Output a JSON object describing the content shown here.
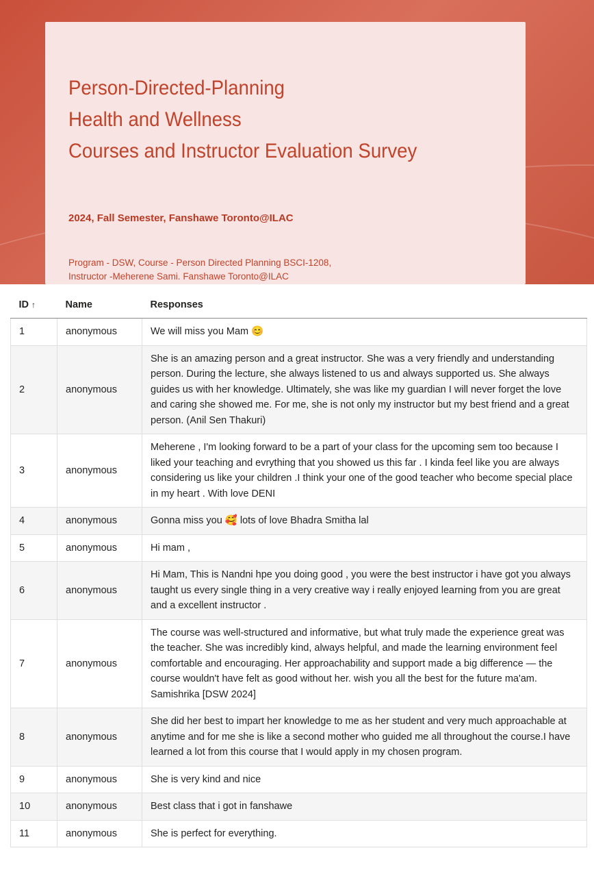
{
  "header": {
    "title_lines": [
      "Person-Directed-Planning",
      "Health and Wellness",
      "Courses and Instructor Evaluation Survey"
    ],
    "subtitle": "2024, Fall Semester, Fanshawe Toronto@ILAC",
    "info_line1": "Program - DSW, Course - Person Directed Planning BSCI-1208,",
    "info_line2": "Instructor -Meherene Sami. Fanshawe Toronto@ILAC"
  },
  "table": {
    "columns": {
      "id": "ID",
      "id_sort_icon": "↑",
      "name": "Name",
      "responses": "Responses"
    },
    "rows": [
      {
        "id": "1",
        "name": "anonymous",
        "response": "We will miss you Mam 😊"
      },
      {
        "id": "2",
        "name": "anonymous",
        "response": "She is an amazing person and a great instructor. She was a very friendly and understanding person. During the lecture, she always listened to us and always supported us. She always guides us with her knowledge. Ultimately, she was like my guardian I will never forget the love and caring she showed me. For me, she is not only my instructor but my best friend and a great person. (Anil Sen Thakuri)"
      },
      {
        "id": "3",
        "name": "anonymous",
        "response": "Meherene , I'm looking forward to be a part of your class for the upcoming sem too because I liked your teaching and evrything that you showed us this far . I kinda feel like you are always considering us like your children .I think your one of the good teacher who become special place in my heart . With love DENI"
      },
      {
        "id": "4",
        "name": "anonymous",
        "response": "Gonna miss you 🥰 lots of love Bhadra Smitha lal"
      },
      {
        "id": "5",
        "name": "anonymous",
        "response": "Hi mam ,"
      },
      {
        "id": "6",
        "name": "anonymous",
        "response": "Hi Mam, This is Nandni hpe you doing good , you were the best instructor i have got you always taught us every single thing in a very creative way i really enjoyed learning from you are great and a excellent instructor ."
      },
      {
        "id": "7",
        "name": "anonymous",
        "response": "The course was well-structured and informative, but what truly made the experience great was the teacher. She was incredibly kind, always helpful, and made the learning environment feel comfortable and encouraging. Her approachability and support made a big difference — the course wouldn't have felt as good without her. wish you all the best for the future ma'am. Samishrika [DSW 2024]"
      },
      {
        "id": "8",
        "name": "anonymous",
        "response": "She did her best to impart her knowledge to me as her student and very much approachable at anytime and for me she is like a second mother who guided me all throughout the course.I have learned a lot from this course that I would apply in my chosen program."
      },
      {
        "id": "9",
        "name": "anonymous",
        "response": "She is very kind and nice"
      },
      {
        "id": "10",
        "name": "anonymous",
        "response": "Best class that i got in fanshawe"
      },
      {
        "id": "11",
        "name": "anonymous",
        "response": "She is perfect for everything."
      }
    ]
  }
}
